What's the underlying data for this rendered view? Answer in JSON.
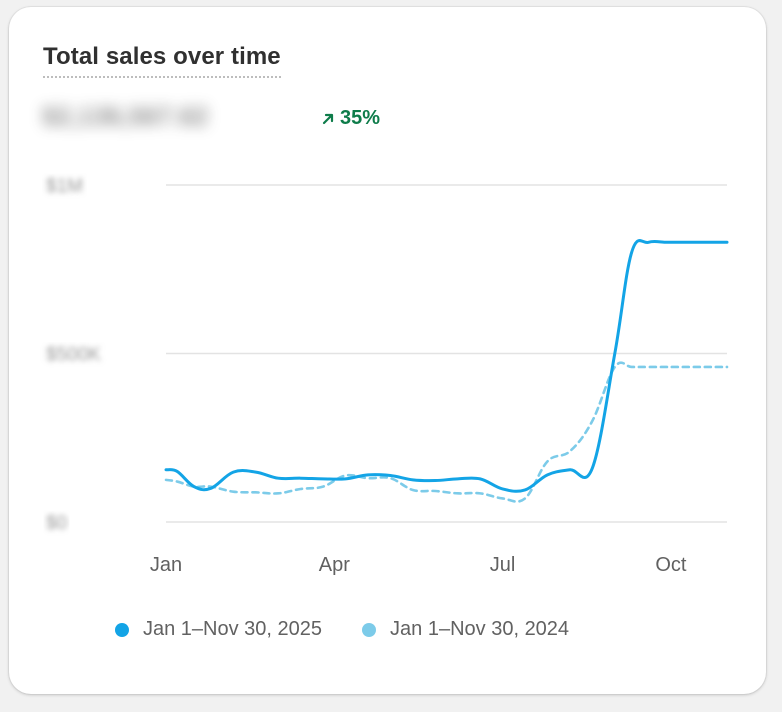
{
  "card": {
    "title": "Total sales over time",
    "total_value": "$2,136,567.62",
    "change_percent": "35%",
    "change_direction": "up",
    "change_color": "#0e7c4a"
  },
  "chart_data": {
    "type": "line",
    "xlabel": "",
    "ylabel": "",
    "x_ticks": [
      "Jan",
      "Apr",
      "Jul",
      "Oct"
    ],
    "y_ticks": [
      "$0",
      "$500K",
      "$1M"
    ],
    "ylim": [
      0,
      1000000
    ],
    "xlim": [
      0,
      10
    ],
    "grid": true,
    "legend_position": "bottom",
    "series": [
      {
        "name": "Jan 1–Nov 30, 2025",
        "color": "#13a4e6",
        "style": "solid",
        "x": [
          0,
          0.2,
          0.5,
          0.8,
          1.2,
          1.6,
          2.0,
          2.4,
          2.8,
          3.2,
          3.6,
          4.0,
          4.4,
          4.8,
          5.2,
          5.6,
          6.0,
          6.4,
          6.8,
          7.2,
          7.6,
          8.0,
          8.3,
          8.6,
          8.9,
          9.1,
          9.35,
          9.6,
          10
        ],
        "y": [
          155000,
          150000,
          105000,
          100000,
          148000,
          148000,
          130000,
          130000,
          128000,
          128000,
          140000,
          138000,
          125000,
          123000,
          128000,
          128000,
          98000,
          95000,
          140000,
          155000,
          160000,
          500000,
          800000,
          830000,
          830000,
          830000,
          830000,
          830000,
          830000
        ]
      },
      {
        "name": "Jan 1–Nov 30, 2024",
        "color": "#7ccbe9",
        "style": "dashed",
        "x": [
          0,
          0.2,
          0.5,
          0.8,
          1.2,
          1.6,
          2.0,
          2.4,
          2.8,
          3.2,
          3.6,
          4.0,
          4.4,
          4.8,
          5.2,
          5.6,
          6.0,
          6.4,
          6.8,
          7.2,
          7.6,
          8.0,
          8.3,
          8.6,
          8.9,
          9.1,
          9.35,
          9.6,
          10
        ],
        "y": [
          125000,
          120000,
          105000,
          105000,
          90000,
          88000,
          85000,
          98000,
          105000,
          138000,
          130000,
          130000,
          95000,
          92000,
          85000,
          85000,
          70000,
          70000,
          180000,
          210000,
          300000,
          460000,
          460000,
          460000,
          460000,
          460000,
          460000,
          460000,
          460000
        ]
      }
    ]
  }
}
